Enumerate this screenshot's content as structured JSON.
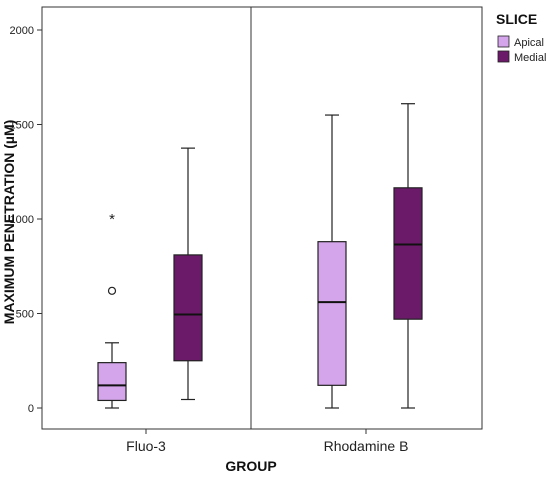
{
  "chart_data": {
    "type": "boxplot",
    "xlabel": "GROUP",
    "ylabel": "MAXIMUM PENETRATION  (µM)",
    "ylim": [
      0,
      2000
    ],
    "yticks": [
      0,
      500,
      1000,
      1500,
      2000
    ],
    "categories": [
      "Fluo-3",
      "Rhodamine B"
    ],
    "legend": {
      "title": "SLICE",
      "position": "right"
    },
    "grid": false,
    "series": [
      {
        "name": "Apical",
        "color": "#d4a5ea",
        "boxes": [
          {
            "category": "Fluo-3",
            "whisker_low": 0,
            "q1": 40,
            "median": 120,
            "q3": 240,
            "whisker_high": 345,
            "outliers": [
              {
                "value": 620,
                "marker": "circle"
              },
              {
                "value": 1015,
                "marker": "star"
              }
            ]
          },
          {
            "category": "Rhodamine B",
            "whisker_low": 0,
            "q1": 120,
            "median": 560,
            "q3": 880,
            "whisker_high": 1550,
            "outliers": []
          }
        ]
      },
      {
        "name": "Medial",
        "color": "#6b1a69",
        "boxes": [
          {
            "category": "Fluo-3",
            "whisker_low": 45,
            "q1": 250,
            "median": 495,
            "q3": 810,
            "whisker_high": 1375,
            "outliers": []
          },
          {
            "category": "Rhodamine B",
            "whisker_low": 0,
            "q1": 470,
            "median": 865,
            "q3": 1165,
            "whisker_high": 1610,
            "outliers": []
          }
        ]
      }
    ]
  }
}
